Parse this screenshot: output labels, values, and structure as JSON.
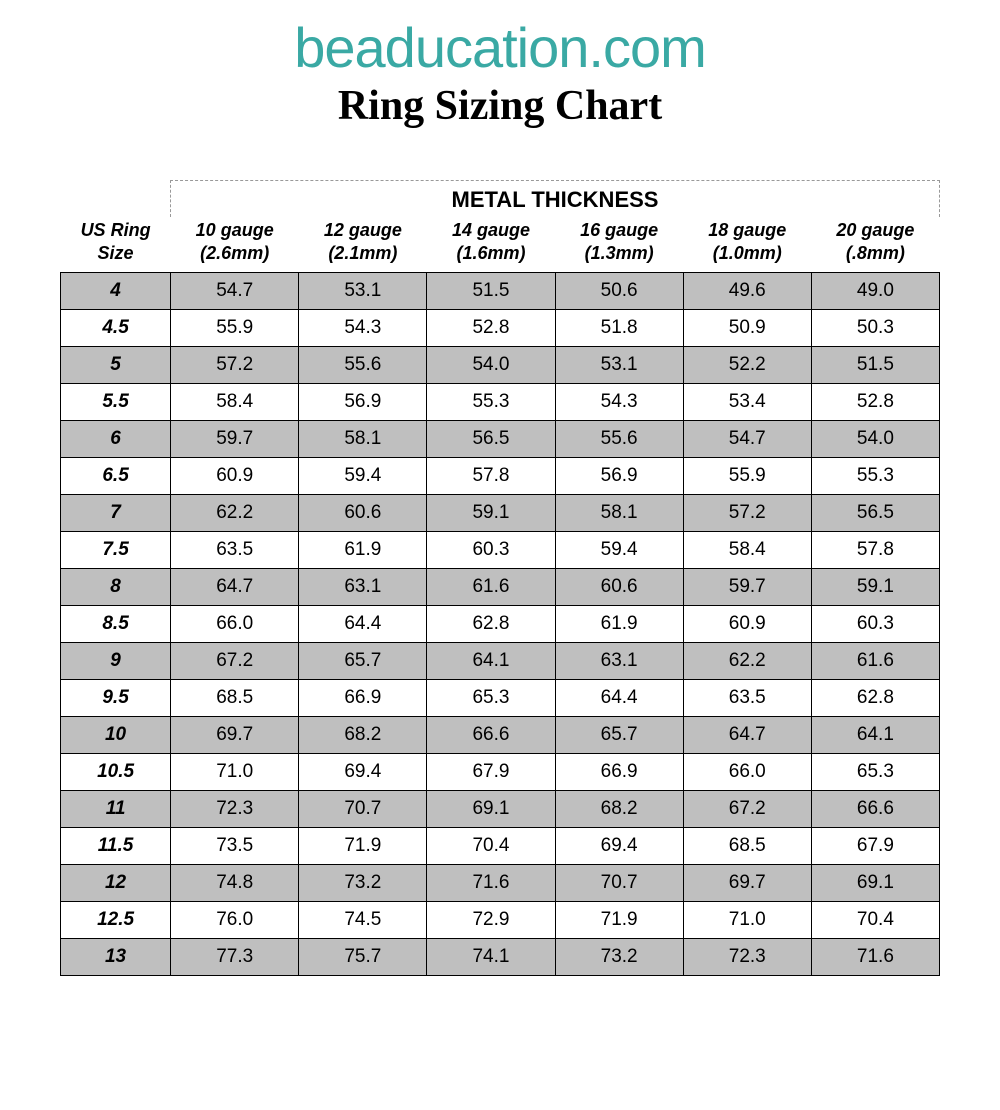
{
  "brand": "beaducation.com",
  "title": "Ring Sizing Chart",
  "table": {
    "span_header": "METAL THICKNESS",
    "row_header": {
      "line1": "US Ring",
      "line2": "Size"
    },
    "columns": [
      {
        "line1": "10 gauge",
        "line2": "(2.6mm)"
      },
      {
        "line1": "12 gauge",
        "line2": "(2.1mm)"
      },
      {
        "line1": "14 gauge",
        "line2": "(1.6mm)"
      },
      {
        "line1": "16 gauge",
        "line2": "(1.3mm)"
      },
      {
        "line1": "18 gauge",
        "line2": "(1.0mm)"
      },
      {
        "line1": "20 gauge",
        "line2": "(.8mm)"
      }
    ],
    "rows": [
      {
        "size": "4",
        "values": [
          "54.7",
          "53.1",
          "51.5",
          "50.6",
          "49.6",
          "49.0"
        ]
      },
      {
        "size": "4.5",
        "values": [
          "55.9",
          "54.3",
          "52.8",
          "51.8",
          "50.9",
          "50.3"
        ]
      },
      {
        "size": "5",
        "values": [
          "57.2",
          "55.6",
          "54.0",
          "53.1",
          "52.2",
          "51.5"
        ]
      },
      {
        "size": "5.5",
        "values": [
          "58.4",
          "56.9",
          "55.3",
          "54.3",
          "53.4",
          "52.8"
        ]
      },
      {
        "size": "6",
        "values": [
          "59.7",
          "58.1",
          "56.5",
          "55.6",
          "54.7",
          "54.0"
        ]
      },
      {
        "size": "6.5",
        "values": [
          "60.9",
          "59.4",
          "57.8",
          "56.9",
          "55.9",
          "55.3"
        ]
      },
      {
        "size": "7",
        "values": [
          "62.2",
          "60.6",
          "59.1",
          "58.1",
          "57.2",
          "56.5"
        ]
      },
      {
        "size": "7.5",
        "values": [
          "63.5",
          "61.9",
          "60.3",
          "59.4",
          "58.4",
          "57.8"
        ]
      },
      {
        "size": "8",
        "values": [
          "64.7",
          "63.1",
          "61.6",
          "60.6",
          "59.7",
          "59.1"
        ]
      },
      {
        "size": "8.5",
        "values": [
          "66.0",
          "64.4",
          "62.8",
          "61.9",
          "60.9",
          "60.3"
        ]
      },
      {
        "size": "9",
        "values": [
          "67.2",
          "65.7",
          "64.1",
          "63.1",
          "62.2",
          "61.6"
        ]
      },
      {
        "size": "9.5",
        "values": [
          "68.5",
          "66.9",
          "65.3",
          "64.4",
          "63.5",
          "62.8"
        ]
      },
      {
        "size": "10",
        "values": [
          "69.7",
          "68.2",
          "66.6",
          "65.7",
          "64.7",
          "64.1"
        ]
      },
      {
        "size": "10.5",
        "values": [
          "71.0",
          "69.4",
          "67.9",
          "66.9",
          "66.0",
          "65.3"
        ]
      },
      {
        "size": "11",
        "values": [
          "72.3",
          "70.7",
          "69.1",
          "68.2",
          "67.2",
          "66.6"
        ]
      },
      {
        "size": "11.5",
        "values": [
          "73.5",
          "71.9",
          "70.4",
          "69.4",
          "68.5",
          "67.9"
        ]
      },
      {
        "size": "12",
        "values": [
          "74.8",
          "73.2",
          "71.6",
          "70.7",
          "69.7",
          "69.1"
        ]
      },
      {
        "size": "12.5",
        "values": [
          "76.0",
          "74.5",
          "72.9",
          "71.9",
          "71.0",
          "70.4"
        ]
      },
      {
        "size": "13",
        "values": [
          "77.3",
          "75.7",
          "74.1",
          "73.2",
          "72.3",
          "71.6"
        ]
      }
    ],
    "shade_color": "#bfbfbf",
    "background_color": "#ffffff",
    "border_color": "#000000",
    "brand_color": "#3aa9a4",
    "header_fontsize": 18,
    "cell_fontsize": 19,
    "spanner_fontsize": 22,
    "title_fontsize": 42,
    "brand_fontsize": 56
  }
}
